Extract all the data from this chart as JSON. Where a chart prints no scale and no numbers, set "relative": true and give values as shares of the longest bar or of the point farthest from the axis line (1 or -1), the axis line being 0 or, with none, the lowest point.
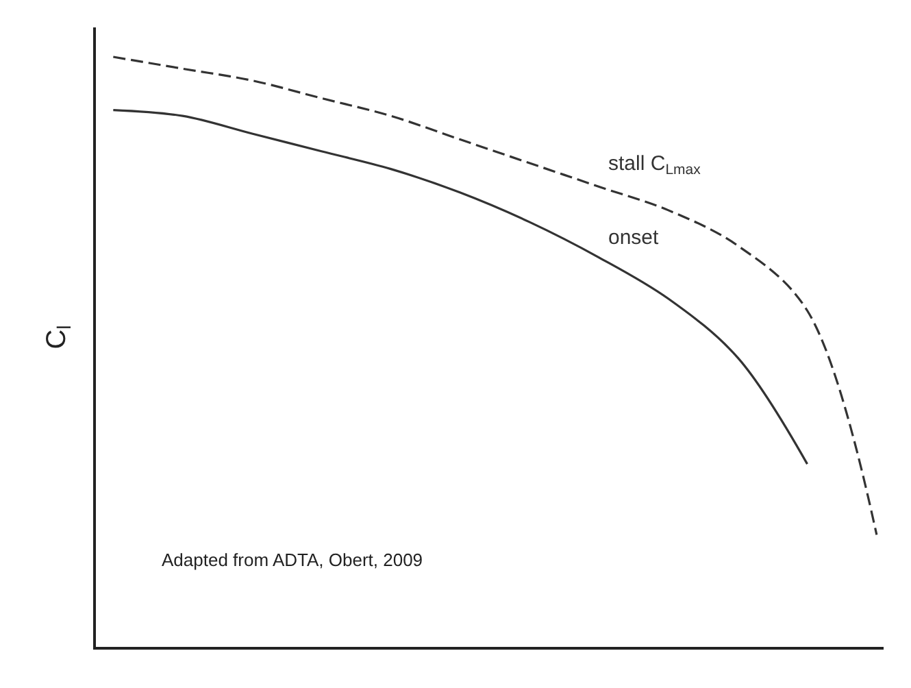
{
  "chart_data": {
    "type": "line",
    "relative": true,
    "ylabel": "C$_{l}$",
    "legend": false,
    "marker": "none",
    "categories": [
      null,
      null,
      null,
      null,
      null,
      null,
      null,
      null,
      null,
      null,
      null,
      null
    ],
    "series": [
      {
        "name": "stall C$_{Lmax}$",
        "color": "#333333",
        "line_style": "dashed",
        "values": [
          1.0,
          0.98,
          0.96,
          0.93,
          0.9,
          0.86,
          0.82,
          0.78,
          0.74,
          0.68,
          0.57,
          0.19
        ]
      },
      {
        "name": "onset",
        "color": "#333333",
        "line_style": "solid",
        "values": [
          0.91,
          0.9,
          0.87,
          0.84,
          0.81,
          0.77,
          0.72,
          0.66,
          0.59,
          0.49,
          0.31,
          null
        ]
      }
    ],
    "annotations": [
      "Adapted from ADTA, Obert, 2009"
    ]
  }
}
